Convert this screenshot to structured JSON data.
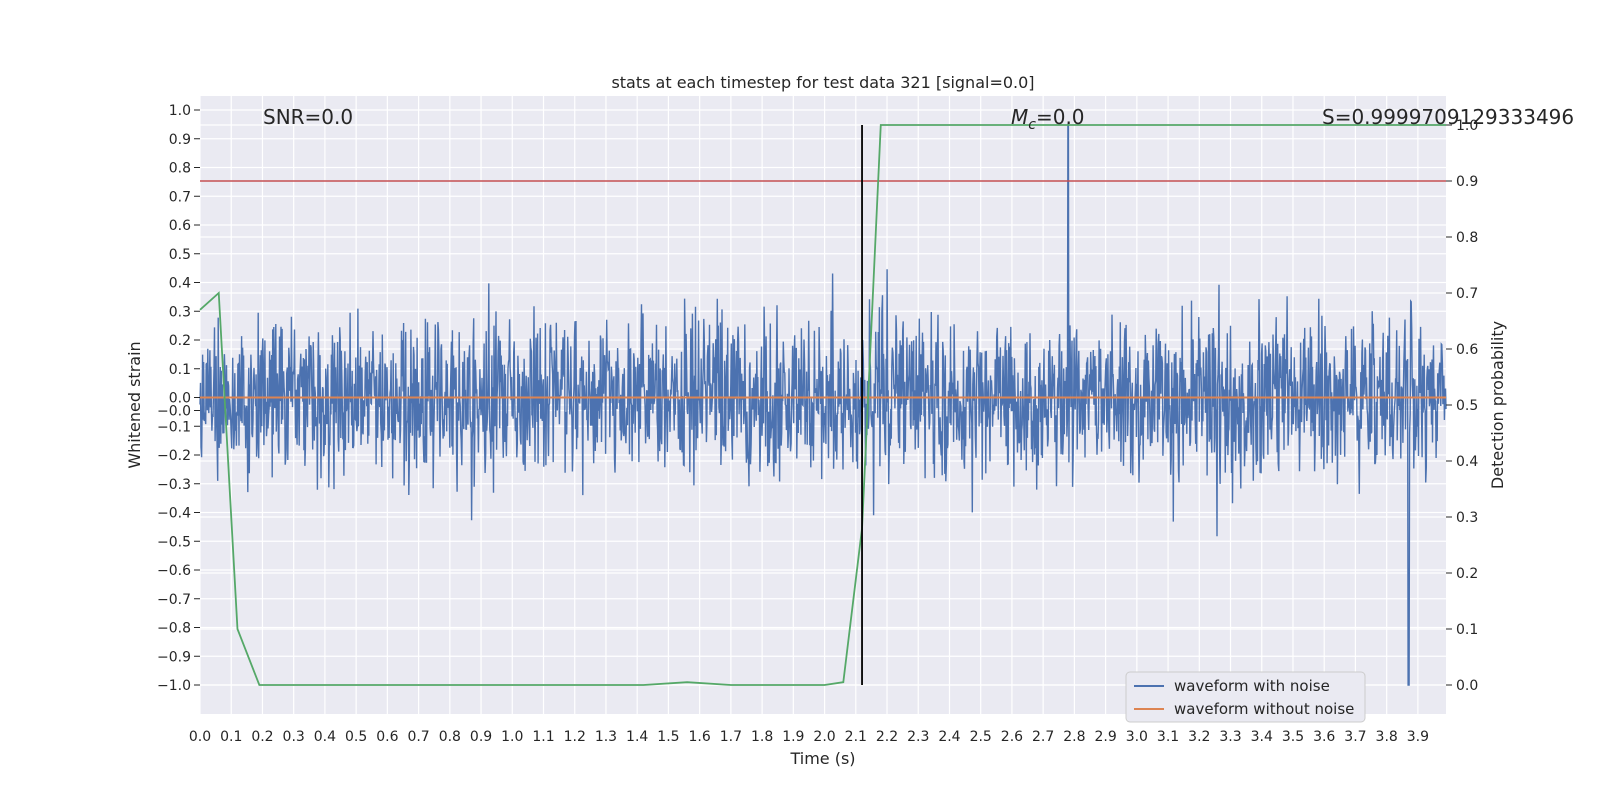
{
  "chart_data": {
    "type": "line",
    "title": "stats at each timestep for test data 321 [signal=0.0]",
    "xlabel": "Time (s)",
    "ylabel": "Whitened strain",
    "y2label": "Detection probability",
    "xlim": [
      0.0,
      3.99
    ],
    "ylim": [
      -1.1,
      1.05
    ],
    "y2lim": [
      -0.05,
      1.05
    ],
    "xticks": [
      "0.0",
      "0.1",
      "0.2",
      "0.3",
      "0.4",
      "0.5",
      "0.6",
      "0.7",
      "0.8",
      "0.9",
      "1.0",
      "1.1",
      "1.2",
      "1.3",
      "1.4",
      "1.5",
      "1.6",
      "1.7",
      "1.8",
      "1.9",
      "2.0",
      "2.1",
      "2.2",
      "2.3",
      "2.4",
      "2.5",
      "2.6",
      "2.7",
      "2.8",
      "2.9",
      "3.0",
      "3.1",
      "3.2",
      "3.3",
      "3.4",
      "3.5",
      "3.6",
      "3.7",
      "3.8",
      "3.9"
    ],
    "yticks": [
      "1.0",
      "0.9",
      "0.8",
      "0.7",
      "0.6",
      "0.5",
      "0.4",
      "0.3",
      "0.2",
      "0.1",
      "0.0",
      "−0.0",
      "−0.1",
      "−0.2",
      "−0.3",
      "−0.4",
      "−0.5",
      "−0.6",
      "−0.7",
      "−0.8",
      "−0.9",
      "−1.0"
    ],
    "y2ticks": [
      "1.0",
      "0.9",
      "0.8",
      "0.7",
      "0.6",
      "0.5",
      "0.4",
      "0.3",
      "0.2",
      "0.1",
      "0.0"
    ],
    "grid": true,
    "legend_position": "bottom-right",
    "annotations": {
      "snr": "SNR=0.0",
      "mc": "M_c=0.0",
      "s": "S=0.9999709129333496"
    },
    "threshold_line": {
      "axis": "y2",
      "value": 0.9,
      "color": "#c44e52"
    },
    "vertical_marker": {
      "x": 2.12,
      "color": "#000000"
    },
    "series": [
      {
        "name": "waveform with noise",
        "axis": "y",
        "color": "#4c72b0",
        "note": "dense white-noise strain, roughly spanning -0.75 to 0.75 with spikes near 0.95 at t≈2.78 and -1.0 at t≈3.87"
      },
      {
        "name": "waveform without noise",
        "axis": "y",
        "color": "#dd8452",
        "x": [
          0.0,
          3.99
        ],
        "y": [
          0.0,
          0.0
        ]
      },
      {
        "name": "detection probability",
        "axis": "y2",
        "color": "#55a868",
        "x": [
          0.0,
          0.06,
          0.12,
          0.19,
          1.42,
          1.56,
          1.7,
          2.0,
          2.06,
          2.12,
          2.18,
          3.99
        ],
        "y": [
          0.67,
          0.7,
          0.1,
          0.0,
          0.0,
          0.005,
          0.0,
          0.0,
          0.005,
          0.28,
          1.0,
          1.0
        ]
      }
    ]
  }
}
